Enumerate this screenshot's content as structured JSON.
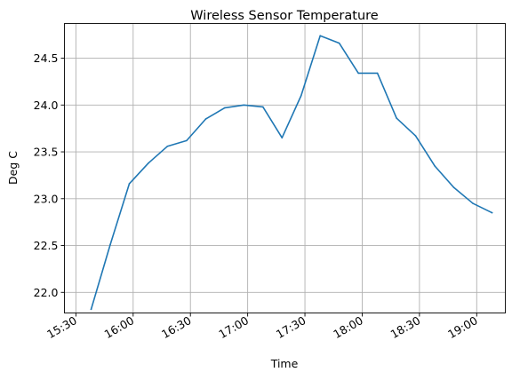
{
  "chart_data": {
    "type": "line",
    "title": "Wireless Sensor Temperature",
    "xlabel": "Time",
    "ylabel": "Deg C",
    "grid": true,
    "legend": "none",
    "xlim": [
      "15:24",
      "19:15"
    ],
    "ylim": [
      21.78,
      24.87
    ],
    "x_ticks": [
      "15:30",
      "16:00",
      "16:30",
      "17:00",
      "17:30",
      "18:00",
      "18:30",
      "19:00"
    ],
    "y_ticks": [
      "22.0",
      "22.5",
      "23.0",
      "23.5",
      "24.0",
      "24.5"
    ],
    "series": [
      {
        "color": "#1f77b4",
        "x": [
          "15:38",
          "15:48",
          "15:58",
          "16:08",
          "16:18",
          "16:28",
          "16:38",
          "16:48",
          "16:58",
          "17:08",
          "17:18",
          "17:28",
          "17:38",
          "17:48",
          "17:58",
          "18:08",
          "18:18",
          "18:28",
          "18:38",
          "18:48",
          "18:58",
          "19:08"
        ],
        "values": [
          21.82,
          22.51,
          23.16,
          23.38,
          23.56,
          23.62,
          23.85,
          23.97,
          24.0,
          23.98,
          23.65,
          24.1,
          24.74,
          24.66,
          24.34,
          24.34,
          23.86,
          23.67,
          23.35,
          23.12,
          22.95,
          22.85
        ]
      }
    ]
  }
}
